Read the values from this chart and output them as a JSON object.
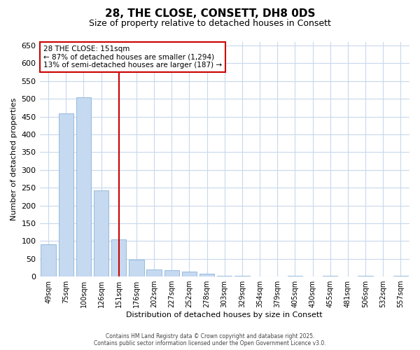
{
  "title1": "28, THE CLOSE, CONSETT, DH8 0DS",
  "title2": "Size of property relative to detached houses in Consett",
  "xlabel": "Distribution of detached houses by size in Consett",
  "ylabel": "Number of detached properties",
  "categories": [
    "49sqm",
    "75sqm",
    "100sqm",
    "126sqm",
    "151sqm",
    "176sqm",
    "202sqm",
    "227sqm",
    "252sqm",
    "278sqm",
    "303sqm",
    "329sqm",
    "354sqm",
    "379sqm",
    "405sqm",
    "430sqm",
    "455sqm",
    "481sqm",
    "506sqm",
    "532sqm",
    "557sqm"
  ],
  "values": [
    90,
    460,
    505,
    242,
    105,
    48,
    20,
    18,
    13,
    8,
    2,
    2,
    0,
    0,
    2,
    0,
    2,
    0,
    2,
    0,
    2
  ],
  "bar_color": "#c5d9f0",
  "bar_edge_color": "#8ab4d8",
  "vline_index": 4,
  "vline_color": "#cc0000",
  "annotation_title": "28 THE CLOSE: 151sqm",
  "annotation_line1": "← 87% of detached houses are smaller (1,294)",
  "annotation_line2": "13% of semi-detached houses are larger (187) →",
  "annotation_box_color": "#cc0000",
  "ylim": [
    0,
    660
  ],
  "yticks": [
    0,
    50,
    100,
    150,
    200,
    250,
    300,
    350,
    400,
    450,
    500,
    550,
    600,
    650
  ],
  "bg_color": "#ffffff",
  "grid_color": "#c8d8ec",
  "title_fontsize": 11,
  "subtitle_fontsize": 9,
  "footer1": "Contains HM Land Registry data © Crown copyright and database right 2025.",
  "footer2": "Contains public sector information licensed under the Open Government Licence v3.0."
}
